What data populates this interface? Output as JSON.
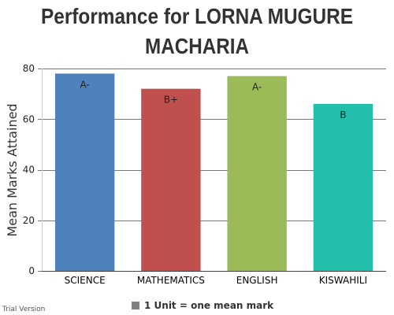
{
  "chart_data": {
    "type": "bar",
    "title_lines": [
      "Performance for LORNA MUGURE",
      "MACHARIA"
    ],
    "ylabel": "Mean Marks Attained",
    "xlabel": "",
    "ylim": [
      0,
      80
    ],
    "yticks": [
      0,
      20,
      40,
      60,
      80
    ],
    "grid": true,
    "categories": [
      "SCIENCE",
      "MATHEMATICS",
      "ENGLISH",
      "KISWAHILI"
    ],
    "values": [
      78,
      72,
      77,
      66
    ],
    "data_labels": [
      "A-",
      "B+",
      "A-",
      "B"
    ],
    "bar_colors": [
      "#4f81bd",
      "#c0504d",
      "#9bbb59",
      "#23bfaa"
    ],
    "legend": {
      "label": "1 Unit = one mean mark",
      "color": "#808080",
      "placement": "bottom"
    }
  },
  "watermark": "Trial Version"
}
